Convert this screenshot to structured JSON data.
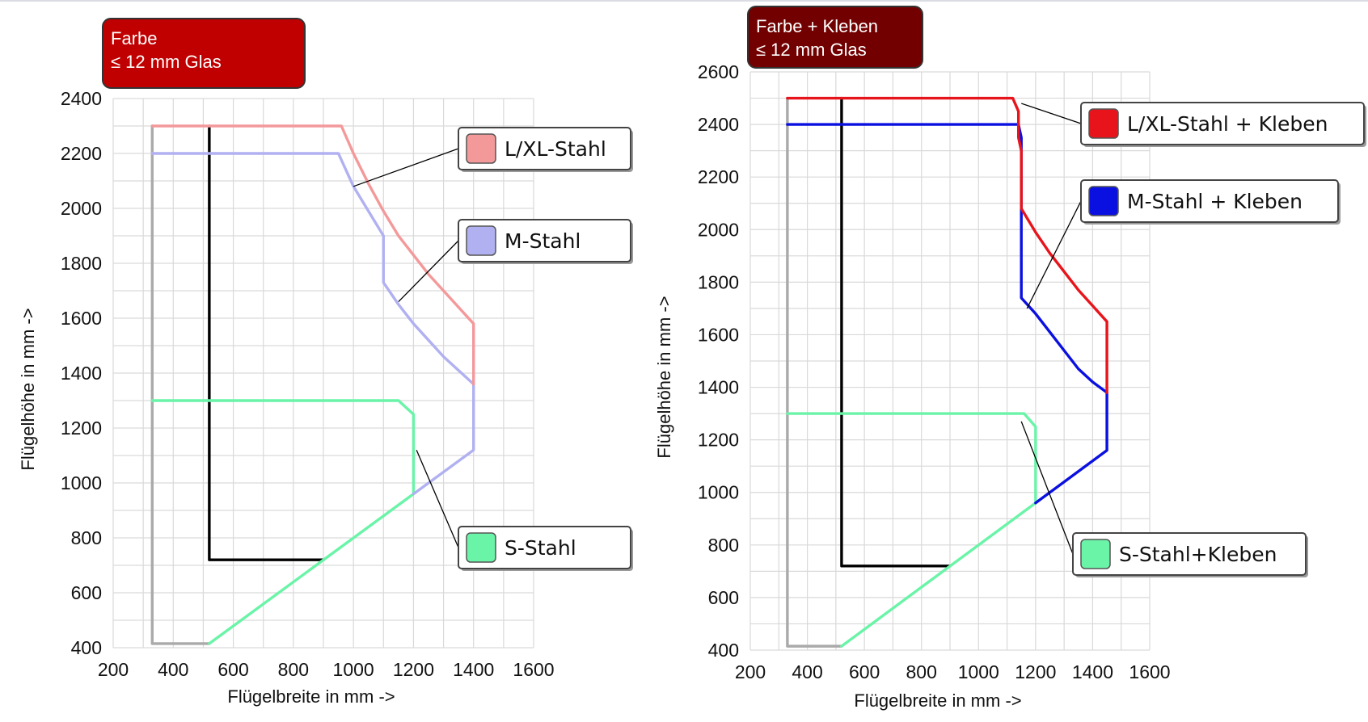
{
  "chart_data": [
    {
      "type": "line",
      "badge": {
        "lines": [
          "Farbe",
          "≤ 12 mm Glas"
        ],
        "color": "#c00000"
      },
      "xlabel": "Flügelbreite in mm ->",
      "ylabel": "Flügelhöhe in mm ->",
      "xlim": [
        200,
        1600
      ],
      "ylim": [
        400,
        2400
      ],
      "xticks": [
        200,
        400,
        600,
        800,
        1000,
        1200,
        1400,
        1600
      ],
      "yticks": [
        400,
        600,
        800,
        1000,
        1200,
        1400,
        1600,
        1800,
        2000,
        2200,
        2400
      ],
      "grid": true,
      "series": [
        {
          "name": "L/XL-Stahl",
          "color": "#f4999a",
          "x": [
            330,
            960,
            1000,
            1050,
            1100,
            1150,
            1200,
            1250,
            1300,
            1400,
            1400
          ],
          "y": [
            2300,
            2300,
            2200,
            2090,
            1990,
            1900,
            1830,
            1760,
            1700,
            1580,
            1360
          ]
        },
        {
          "name": "M-Stahl",
          "color": "#b1b1f2",
          "x": [
            330,
            950,
            1000,
            1100,
            1100,
            1150,
            1200,
            1250,
            1300,
            1350,
            1400,
            1400,
            1200
          ],
          "y": [
            2200,
            2200,
            2080,
            1900,
            1730,
            1650,
            1580,
            1520,
            1460,
            1410,
            1360,
            1120,
            960
          ]
        },
        {
          "name": "S-Stahl",
          "color": "#6af4a8",
          "x": [
            520,
            1200,
            1200,
            1150,
            330
          ],
          "y": [
            415,
            960,
            1250,
            1300,
            1300
          ]
        },
        {
          "name": "",
          "color": "#aaaaaa",
          "x": [
            330,
            330,
            520
          ],
          "y": [
            2300,
            415,
            415
          ]
        },
        {
          "name": "",
          "color": "#000000",
          "x": [
            520,
            520,
            900
          ],
          "y": [
            2300,
            720,
            720
          ]
        }
      ],
      "legend": [
        {
          "label": "L/XL-Stahl",
          "color": "#f4999a",
          "target_x": 1000,
          "target_y": 2080
        },
        {
          "label": "M-Stahl",
          "color": "#b1b1f2",
          "target_x": 1150,
          "target_y": 1660
        },
        {
          "label": "S-Stahl",
          "color": "#6af4a8",
          "target_x": 1210,
          "target_y": 1120
        }
      ]
    },
    {
      "type": "line",
      "badge": {
        "lines": [
          "Farbe + Kleben",
          "≤ 12 mm Glas"
        ],
        "color": "#720000"
      },
      "xlabel": "Flügelbreite in mm ->",
      "ylabel": "Flügelhöhe in mm ->",
      "xlim": [
        200,
        1600
      ],
      "ylim": [
        400,
        2600
      ],
      "xticks": [
        200,
        400,
        600,
        800,
        1000,
        1200,
        1400,
        1600
      ],
      "yticks": [
        400,
        600,
        800,
        1000,
        1200,
        1400,
        1600,
        1800,
        2000,
        2200,
        2400,
        2600
      ],
      "grid": true,
      "series": [
        {
          "name": "L/XL-Stahl + Kleben",
          "color": "#e8141c",
          "x": [
            330,
            1120,
            1140,
            1140,
            1150,
            1150,
            1200,
            1250,
            1300,
            1350,
            1400,
            1450,
            1450
          ],
          "y": [
            2500,
            2500,
            2450,
            2350,
            2300,
            2080,
            1990,
            1910,
            1840,
            1770,
            1710,
            1650,
            1380
          ]
        },
        {
          "name": "M-Stahl + Kleben",
          "color": "#0a10e0",
          "x": [
            330,
            1140,
            1150,
            1150,
            1200,
            1250,
            1300,
            1350,
            1400,
            1450,
            1450,
            1200
          ],
          "y": [
            2400,
            2400,
            2350,
            1740,
            1680,
            1610,
            1540,
            1470,
            1420,
            1380,
            1160,
            960
          ]
        },
        {
          "name": "S-Stahl+Kleben",
          "color": "#6af4a8",
          "x": [
            520,
            1200,
            1200,
            1160,
            330
          ],
          "y": [
            415,
            960,
            1250,
            1300,
            1300
          ]
        },
        {
          "name": "",
          "color": "#aaaaaa",
          "x": [
            330,
            330,
            520
          ],
          "y": [
            2500,
            415,
            415
          ]
        },
        {
          "name": "",
          "color": "#000000",
          "x": [
            520,
            520,
            900
          ],
          "y": [
            2500,
            720,
            720
          ]
        }
      ],
      "legend": [
        {
          "label": "L/XL-Stahl + Kleben",
          "color": "#e8141c",
          "target_x": 1150,
          "target_y": 2480
        },
        {
          "label": "M-Stahl + Kleben",
          "color": "#0a10e0",
          "target_x": 1170,
          "target_y": 1700
        },
        {
          "label": "S-Stahl+Kleben",
          "color": "#6af4a8",
          "target_x": 1150,
          "target_y": 1270
        }
      ]
    }
  ]
}
